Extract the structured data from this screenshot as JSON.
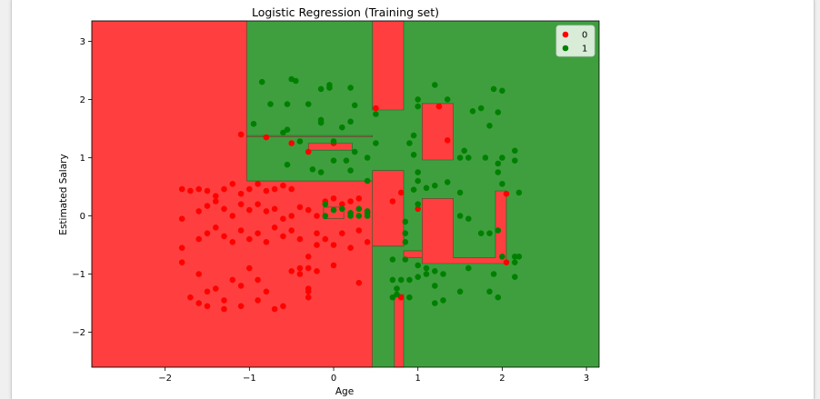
{
  "chart_data": {
    "type": "scatter",
    "title": "Logistic Regression (Training set)",
    "xlabel": "Age",
    "ylabel": "Estimated Salary",
    "xlim": [
      -2.87,
      3.15
    ],
    "ylim": [
      -2.6,
      3.35
    ],
    "xticks": [
      -2,
      -1,
      0,
      1,
      2,
      3
    ],
    "yticks": [
      -2,
      -1,
      0,
      1,
      2,
      3
    ],
    "xtick_labels": [
      "−2",
      "−1",
      "0",
      "1",
      "2",
      "3"
    ],
    "ytick_labels": [
      "−2",
      "−1",
      "0",
      "1",
      "2",
      "3"
    ],
    "legend_position": "top-right",
    "grid": false,
    "colors": {
      "class0_region": "#ff3f3f",
      "class1_region": "#3f9f3f",
      "class0_point": "#ff0000",
      "class1_point": "#008000"
    },
    "regions_class0": [
      [
        [
          -2.87,
          -2.6
        ],
        [
          0.46,
          -2.6
        ],
        [
          0.46,
          -0.52
        ],
        [
          0.83,
          -0.52
        ],
        [
          0.83,
          -0.25
        ],
        [
          0.72,
          -0.25
        ],
        [
          0.72,
          0.25
        ],
        [
          0.46,
          0.25
        ],
        [
          0.46,
          0.6
        ],
        [
          -1.03,
          0.6
        ],
        [
          -1.03,
          1.36
        ],
        [
          -1.03,
          3.35
        ],
        [
          -2.87,
          3.35
        ]
      ],
      [
        [
          -1.03,
          1.36
        ],
        [
          0.46,
          1.36
        ],
        [
          0.46,
          1.38
        ],
        [
          -1.03,
          1.38
        ]
      ],
      [
        [
          0.46,
          0.78
        ],
        [
          0.83,
          0.78
        ],
        [
          0.83,
          -0.52
        ],
        [
          0.46,
          -0.52
        ]
      ],
      [
        [
          0.72,
          -2.6
        ],
        [
          0.83,
          -2.6
        ],
        [
          0.83,
          -1.35
        ],
        [
          0.72,
          -1.35
        ]
      ],
      [
        [
          0.46,
          1.82
        ],
        [
          0.83,
          1.82
        ],
        [
          0.83,
          3.35
        ],
        [
          0.46,
          3.35
        ]
      ],
      [
        [
          1.05,
          0.96
        ],
        [
          1.42,
          0.96
        ],
        [
          1.42,
          1.93
        ],
        [
          1.05,
          1.93
        ]
      ],
      [
        [
          -0.3,
          1.13
        ],
        [
          0.22,
          1.13
        ],
        [
          0.22,
          1.25
        ],
        [
          -0.3,
          1.25
        ]
      ],
      [
        [
          -0.12,
          -0.05
        ],
        [
          0.12,
          -0.05
        ],
        [
          0.12,
          0.15
        ],
        [
          -0.12,
          0.15
        ]
      ],
      [
        [
          0.83,
          -0.6
        ],
        [
          1.05,
          -0.6
        ],
        [
          1.05,
          -0.72
        ],
        [
          0.83,
          -0.72
        ]
      ],
      [
        [
          1.05,
          -0.82
        ],
        [
          2.05,
          -0.82
        ],
        [
          2.05,
          0.43
        ],
        [
          1.92,
          0.43
        ],
        [
          1.92,
          -0.72
        ],
        [
          1.42,
          -0.72
        ],
        [
          1.42,
          0.3
        ],
        [
          1.05,
          0.3
        ]
      ]
    ],
    "series": [
      {
        "name": "0",
        "points": [
          [
            -1.8,
            0.46
          ],
          [
            -1.7,
            0.43
          ],
          [
            -1.6,
            0.46
          ],
          [
            -1.5,
            0.43
          ],
          [
            -1.4,
            0.34
          ],
          [
            -1.3,
            0.46
          ],
          [
            -1.2,
            0.55
          ],
          [
            -1.1,
            0.38
          ],
          [
            -1.0,
            0.46
          ],
          [
            -0.9,
            0.55
          ],
          [
            -0.8,
            0.43
          ],
          [
            -0.7,
            0.46
          ],
          [
            -0.6,
            0.52
          ],
          [
            -0.5,
            0.46
          ],
          [
            -1.8,
            -0.05
          ],
          [
            -1.6,
            0.08
          ],
          [
            -1.5,
            0.17
          ],
          [
            -1.4,
            0.25
          ],
          [
            -1.3,
            0.12
          ],
          [
            -1.2,
            0.0
          ],
          [
            -1.1,
            0.2
          ],
          [
            -1.0,
            0.1
          ],
          [
            -0.9,
            0.2
          ],
          [
            -0.8,
            0.08
          ],
          [
            -0.7,
            0.12
          ],
          [
            -0.6,
            -0.05
          ],
          [
            -0.5,
            0.0
          ],
          [
            -0.4,
            0.15
          ],
          [
            -1.8,
            -0.55
          ],
          [
            -1.6,
            -0.4
          ],
          [
            -1.5,
            -0.3
          ],
          [
            -1.4,
            -0.2
          ],
          [
            -1.3,
            -0.35
          ],
          [
            -1.2,
            -0.45
          ],
          [
            -1.1,
            -0.25
          ],
          [
            -1.0,
            -0.4
          ],
          [
            -0.9,
            -0.3
          ],
          [
            -0.8,
            -0.45
          ],
          [
            -0.7,
            -0.2
          ],
          [
            -0.6,
            -0.35
          ],
          [
            -0.5,
            -0.25
          ],
          [
            -0.4,
            -0.4
          ],
          [
            -1.8,
            -0.8
          ],
          [
            -1.6,
            -1.0
          ],
          [
            -1.5,
            -1.3
          ],
          [
            -1.4,
            -1.25
          ],
          [
            -1.3,
            -1.45
          ],
          [
            -1.2,
            -1.1
          ],
          [
            -1.1,
            -1.2
          ],
          [
            -1.0,
            -0.9
          ],
          [
            -0.9,
            -1.1
          ],
          [
            -0.8,
            -1.3
          ],
          [
            -0.7,
            -1.6
          ],
          [
            -0.6,
            -1.55
          ],
          [
            -0.5,
            -0.95
          ],
          [
            -0.4,
            -1.0
          ],
          [
            -1.7,
            -1.4
          ],
          [
            -1.6,
            -1.5
          ],
          [
            -1.5,
            -1.55
          ],
          [
            -1.3,
            -1.6
          ],
          [
            -1.1,
            -1.55
          ],
          [
            -0.9,
            -1.45
          ],
          [
            -0.3,
            -1.3
          ],
          [
            -0.3,
            -1.4
          ],
          [
            -0.3,
            -0.9
          ],
          [
            -0.3,
            -0.7
          ],
          [
            -0.2,
            -0.5
          ],
          [
            -0.2,
            -0.3
          ],
          [
            -0.1,
            -0.4
          ],
          [
            0.0,
            -0.5
          ],
          [
            0.1,
            -0.3
          ],
          [
            0.2,
            -0.55
          ],
          [
            0.3,
            -0.25
          ],
          [
            0.4,
            -0.45
          ],
          [
            -0.3,
            0.1
          ],
          [
            -0.2,
            0.0
          ],
          [
            -0.1,
            0.25
          ],
          [
            0.0,
            0.3
          ],
          [
            0.1,
            0.2
          ],
          [
            0.2,
            0.25
          ],
          [
            0.3,
            0.3
          ],
          [
            -0.3,
            1.1
          ],
          [
            -0.5,
            1.25
          ],
          [
            0.0,
            1.25
          ],
          [
            -0.8,
            1.35
          ],
          [
            -1.1,
            1.4
          ],
          [
            0.5,
            1.85
          ],
          [
            1.25,
            1.88
          ],
          [
            1.35,
            1.3
          ],
          [
            0.7,
            0.25
          ],
          [
            0.8,
            0.4
          ],
          [
            1.0,
            0.12
          ],
          [
            2.05,
            0.38
          ],
          [
            2.05,
            -0.8
          ],
          [
            0.8,
            -1.4
          ],
          [
            -0.3,
            -1.25
          ],
          [
            0.3,
            -1.15
          ],
          [
            -0.4,
            -0.9
          ],
          [
            -0.2,
            -0.95
          ],
          [
            0.0,
            -0.85
          ]
        ]
      },
      {
        "name": "1",
        "points": [
          [
            -0.85,
            2.3
          ],
          [
            -0.5,
            2.35
          ],
          [
            -0.45,
            2.32
          ],
          [
            -0.75,
            1.92
          ],
          [
            -0.55,
            1.92
          ],
          [
            -0.3,
            1.92
          ],
          [
            -0.15,
            2.18
          ],
          [
            -0.05,
            2.2
          ],
          [
            -0.05,
            2.25
          ],
          [
            0.2,
            2.2
          ],
          [
            0.25,
            1.9
          ],
          [
            -0.15,
            1.6
          ],
          [
            -0.15,
            1.65
          ],
          [
            0.1,
            1.52
          ],
          [
            0.2,
            1.62
          ],
          [
            -0.95,
            1.58
          ],
          [
            -0.6,
            1.43
          ],
          [
            -0.55,
            1.48
          ],
          [
            -0.4,
            1.28
          ],
          [
            0.0,
            1.28
          ],
          [
            0.25,
            1.1
          ],
          [
            0.5,
            1.25
          ],
          [
            0.4,
            1.0
          ],
          [
            0.15,
            0.95
          ],
          [
            0.0,
            0.95
          ],
          [
            -0.15,
            0.75
          ],
          [
            -0.25,
            0.8
          ],
          [
            -0.55,
            0.88
          ],
          [
            0.2,
            0.78
          ],
          [
            0.4,
            0.6
          ],
          [
            0.95,
            1.38
          ],
          [
            0.9,
            1.25
          ],
          [
            0.95,
            1.05
          ],
          [
            1.0,
            0.75
          ],
          [
            1.0,
            0.6
          ],
          [
            0.95,
            0.45
          ],
          [
            1.0,
            0.2
          ],
          [
            1.1,
            0.48
          ],
          [
            1.2,
            0.52
          ],
          [
            1.35,
            0.58
          ],
          [
            1.5,
            0.4
          ],
          [
            1.5,
            0.0
          ],
          [
            1.6,
            -0.05
          ],
          [
            1.75,
            -0.3
          ],
          [
            1.85,
            -0.3
          ],
          [
            1.95,
            -0.25
          ],
          [
            2.0,
            0.55
          ],
          [
            1.95,
            0.75
          ],
          [
            1.95,
            0.9
          ],
          [
            2.15,
            1.12
          ],
          [
            2.15,
            0.95
          ],
          [
            2.0,
            1.0
          ],
          [
            1.5,
            1.0
          ],
          [
            1.55,
            1.12
          ],
          [
            1.6,
            1.0
          ],
          [
            1.8,
            1.0
          ],
          [
            1.65,
            1.8
          ],
          [
            1.75,
            1.85
          ],
          [
            1.85,
            1.55
          ],
          [
            1.9,
            2.18
          ],
          [
            2.0,
            2.15
          ],
          [
            1.95,
            1.78
          ],
          [
            1.35,
            2.0
          ],
          [
            1.2,
            2.25
          ],
          [
            1.0,
            2.0
          ],
          [
            1.0,
            1.88
          ],
          [
            0.5,
            1.75
          ],
          [
            0.85,
            -0.75
          ],
          [
            1.0,
            -0.85
          ],
          [
            1.1,
            -0.9
          ],
          [
            1.2,
            -0.95
          ],
          [
            1.3,
            -1.0
          ],
          [
            0.7,
            -1.1
          ],
          [
            0.8,
            -1.1
          ],
          [
            0.9,
            -1.1
          ],
          [
            1.0,
            -1.05
          ],
          [
            1.1,
            -1.0
          ],
          [
            1.2,
            -1.2
          ],
          [
            1.5,
            -1.3
          ],
          [
            1.6,
            -0.9
          ],
          [
            1.85,
            -1.3
          ],
          [
            1.9,
            -1.0
          ],
          [
            2.0,
            -0.7
          ],
          [
            2.15,
            -0.7
          ],
          [
            2.15,
            -0.8
          ],
          [
            2.15,
            -1.05
          ],
          [
            1.95,
            -1.4
          ],
          [
            1.3,
            -1.45
          ],
          [
            1.2,
            -1.5
          ],
          [
            0.9,
            -1.4
          ],
          [
            0.75,
            -1.35
          ],
          [
            0.7,
            -1.4
          ],
          [
            0.75,
            -1.25
          ],
          [
            0.7,
            -0.75
          ],
          [
            0.85,
            -0.45
          ],
          [
            0.85,
            -0.3
          ],
          [
            0.85,
            -0.1
          ],
          [
            0.4,
            0.05
          ],
          [
            0.4,
            0.08
          ],
          [
            0.3,
            0.12
          ],
          [
            0.2,
            0.05
          ],
          [
            0.1,
            0.12
          ],
          [
            0.0,
            0.1
          ],
          [
            -0.1,
            0.0
          ],
          [
            -0.1,
            0.2
          ],
          [
            0.2,
            0.0
          ],
          [
            0.3,
            0.0
          ],
          [
            0.4,
            0.0
          ],
          [
            2.2,
            0.4
          ],
          [
            2.2,
            -0.7
          ]
        ]
      }
    ]
  }
}
